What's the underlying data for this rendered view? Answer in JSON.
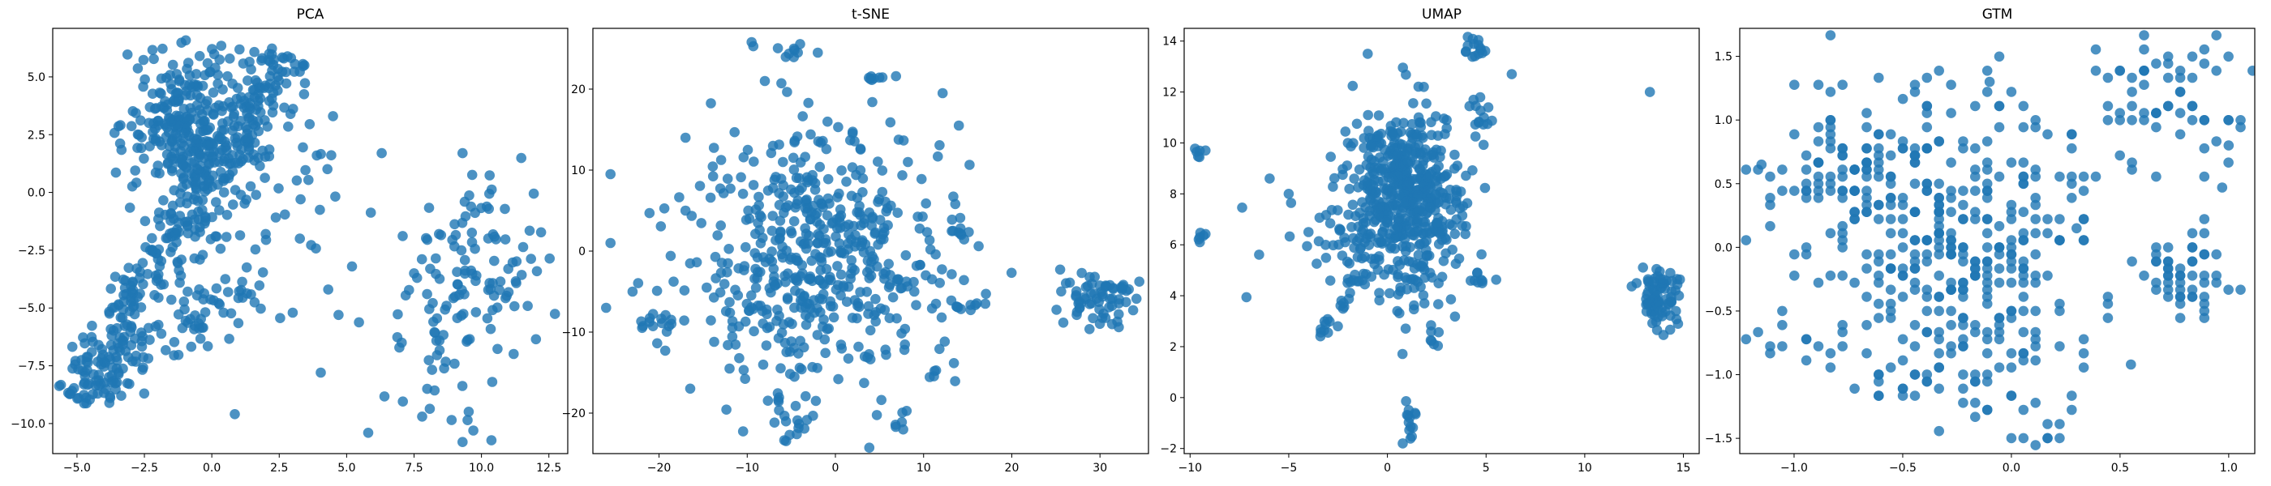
{
  "figure": {
    "marker_color": "#1f77b4",
    "marker_alpha": 0.8
  },
  "chart_data": [
    {
      "type": "scatter",
      "title": "PCA",
      "xlabel": "",
      "ylabel": "",
      "xlim": [
        -5.9,
        13.2
      ],
      "ylim": [
        -11.3,
        7.1
      ],
      "xticks": [
        -5.0,
        -2.5,
        0.0,
        2.5,
        5.0,
        7.5,
        10.0,
        12.5
      ],
      "yticks": [
        -10.0,
        -7.5,
        -5.0,
        -2.5,
        0.0,
        2.5,
        5.0
      ],
      "grid": false,
      "clusters": [
        {
          "shape": "line",
          "from": [
            -5.0,
            -9.0
          ],
          "to": [
            2.8,
            6.0
          ],
          "width": 1.2,
          "count": 360
        },
        {
          "shape": "line",
          "from": [
            -4.0,
            -8.5
          ],
          "to": [
            1.0,
            -4.0
          ],
          "width": 1.0,
          "count": 60
        },
        {
          "shape": "blob",
          "center": [
            -1.0,
            3.0
          ],
          "spread": [
            1.1,
            1.6
          ],
          "count": 260
        },
        {
          "shape": "blob",
          "center": [
            0.8,
            -3.0
          ],
          "spread": [
            1.8,
            2.2
          ],
          "count": 50
        },
        {
          "shape": "blob",
          "center": [
            2.5,
            1.0
          ],
          "spread": [
            1.2,
            1.6
          ],
          "count": 25
        },
        {
          "shape": "blob",
          "center": [
            10.0,
            -3.0
          ],
          "spread": [
            1.4,
            2.3
          ],
          "count": 110
        },
        {
          "shape": "blob",
          "center": [
            8.5,
            -7.0
          ],
          "spread": [
            1.4,
            1.8
          ],
          "count": 25
        }
      ],
      "points": [
        [
          6.3,
          1.7
        ],
        [
          9.3,
          1.7
        ],
        [
          3.0,
          -5.2
        ],
        [
          4.7,
          -5.3
        ],
        [
          5.8,
          -10.4
        ],
        [
          7.8,
          -9.7
        ],
        [
          9.3,
          -10.8
        ],
        [
          9.7,
          -10.3
        ],
        [
          2.0,
          -1.8
        ],
        [
          5.2,
          -3.2
        ],
        [
          7.5,
          -3.5
        ],
        [
          10.4,
          -8.2
        ]
      ]
    },
    {
      "type": "scatter",
      "title": "t-SNE",
      "xlabel": "",
      "ylabel": "",
      "xlim": [
        -27.5,
        35.5
      ],
      "ylim": [
        -25.0,
        27.5
      ],
      "xticks": [
        -20,
        -10,
        0,
        10,
        20,
        30
      ],
      "yticks": [
        -20,
        -10,
        0,
        10,
        20
      ],
      "grid": false,
      "clusters": [
        {
          "shape": "blob",
          "center": [
            -2.0,
            0.0
          ],
          "spread": [
            7.0,
            8.0
          ],
          "count": 520
        },
        {
          "shape": "blob",
          "center": [
            30.0,
            -6.0
          ],
          "spread": [
            2.2,
            1.8
          ],
          "count": 70
        },
        {
          "shape": "blob",
          "center": [
            -20.0,
            -9.0
          ],
          "spread": [
            1.6,
            1.2
          ],
          "count": 15
        },
        {
          "shape": "blob",
          "center": [
            -5.0,
            -21.0
          ],
          "spread": [
            1.5,
            1.8
          ],
          "count": 20
        },
        {
          "shape": "blob",
          "center": [
            7.0,
            -21.5
          ],
          "spread": [
            0.8,
            0.8
          ],
          "count": 6
        },
        {
          "shape": "blob",
          "center": [
            13.0,
            -14.0
          ],
          "spread": [
            1.0,
            1.0
          ],
          "count": 6
        },
        {
          "shape": "blob",
          "center": [
            14.5,
            -6.5
          ],
          "spread": [
            1.5,
            0.5
          ],
          "count": 10
        },
        {
          "shape": "blob",
          "center": [
            14.0,
            2.0
          ],
          "spread": [
            0.7,
            1.0
          ],
          "count": 8
        },
        {
          "shape": "blob",
          "center": [
            4.5,
            21.5
          ],
          "spread": [
            1.3,
            0.6
          ],
          "count": 8
        },
        {
          "shape": "blob",
          "center": [
            -4.5,
            25.0
          ],
          "spread": [
            0.6,
            0.5
          ],
          "count": 8
        }
      ],
      "points": [
        [
          -25.5,
          9.5
        ],
        [
          -25.5,
          1.0
        ],
        [
          -26.0,
          -7.0
        ],
        [
          -9.5,
          25.8
        ],
        [
          -2.0,
          24.5
        ],
        [
          -17.0,
          14.0
        ],
        [
          14.0,
          15.5
        ],
        [
          -8.0,
          21.0
        ],
        [
          -17.0,
          5.0
        ],
        [
          17.0,
          -6.5
        ],
        [
          -23.0,
          -5.0
        ],
        [
          -12.0,
          -14.5
        ]
      ]
    },
    {
      "type": "scatter",
      "title": "UMAP",
      "xlabel": "",
      "ylabel": "",
      "xlim": [
        -10.3,
        15.8
      ],
      "ylim": [
        -2.2,
        14.5
      ],
      "xticks": [
        -10,
        -5,
        0,
        5,
        10,
        15
      ],
      "yticks": [
        -2,
        0,
        2,
        4,
        6,
        8,
        10,
        12,
        14
      ],
      "grid": false,
      "clusters": [
        {
          "shape": "blob",
          "center": [
            1.0,
            8.2
          ],
          "spread": [
            1.4,
            1.5
          ],
          "count": 430
        },
        {
          "shape": "blob",
          "center": [
            -1.5,
            6.5
          ],
          "spread": [
            2.0,
            1.2
          ],
          "count": 80
        },
        {
          "shape": "blob",
          "center": [
            1.5,
            5.0
          ],
          "spread": [
            1.3,
            1.0
          ],
          "count": 60
        },
        {
          "shape": "line",
          "from": [
            -3.5,
            2.4
          ],
          "to": [
            -1.0,
            5.0
          ],
          "width": 0.3,
          "count": 25
        },
        {
          "shape": "blob",
          "center": [
            13.8,
            4.0
          ],
          "spread": [
            0.5,
            0.6
          ],
          "count": 80
        },
        {
          "shape": "blob",
          "center": [
            4.5,
            13.6
          ],
          "spread": [
            0.3,
            0.25
          ],
          "count": 15
        },
        {
          "shape": "blob",
          "center": [
            4.8,
            11.0
          ],
          "spread": [
            0.3,
            0.6
          ],
          "count": 14
        },
        {
          "shape": "blob",
          "center": [
            1.2,
            -1.0
          ],
          "spread": [
            0.2,
            0.45
          ],
          "count": 14
        },
        {
          "shape": "blob",
          "center": [
            -9.5,
            9.7
          ],
          "spread": [
            0.15,
            0.15
          ],
          "count": 6
        },
        {
          "shape": "blob",
          "center": [
            -9.5,
            6.2
          ],
          "spread": [
            0.12,
            0.12
          ],
          "count": 6
        },
        {
          "shape": "blob",
          "center": [
            4.6,
            4.6
          ],
          "spread": [
            0.3,
            0.15
          ],
          "count": 8
        },
        {
          "shape": "blob",
          "center": [
            2.3,
            2.3
          ],
          "spread": [
            0.15,
            0.3
          ],
          "count": 7
        }
      ],
      "points": [
        [
          -1.0,
          13.5
        ],
        [
          6.3,
          12.7
        ],
        [
          13.3,
          12.0
        ],
        [
          3.0,
          10.9
        ],
        [
          -5.0,
          8.0
        ],
        [
          -2.0,
          10.0
        ],
        [
          3.5,
          7.0
        ],
        [
          -4.0,
          6.5
        ],
        [
          0.5,
          3.4
        ]
      ]
    },
    {
      "type": "scatter",
      "title": "GTM",
      "xlabel": "",
      "ylabel": "",
      "xlim": [
        -1.25,
        1.12
      ],
      "ylim": [
        -1.62,
        1.72
      ],
      "xticks": [
        -1.0,
        -0.5,
        0.0,
        0.5,
        1.0
      ],
      "yticks": [
        -1.5,
        -1.0,
        -0.5,
        0.0,
        0.5,
        1.0,
        1.5
      ],
      "grid": false,
      "grid_spacing": 0.0555,
      "clusters": [
        {
          "shape": "blob",
          "center": [
            -0.3,
            0.3
          ],
          "spread": [
            0.35,
            0.55
          ],
          "count": 280
        },
        {
          "shape": "blob",
          "center": [
            0.7,
            1.2
          ],
          "spread": [
            0.2,
            0.25
          ],
          "count": 60
        },
        {
          "shape": "blob",
          "center": [
            0.8,
            -0.2
          ],
          "spread": [
            0.1,
            0.15
          ],
          "count": 50
        },
        {
          "shape": "blob",
          "center": [
            -0.25,
            -0.6
          ],
          "spread": [
            0.3,
            0.4
          ],
          "count": 120
        },
        {
          "shape": "blob",
          "center": [
            -0.8,
            0.6
          ],
          "spread": [
            0.2,
            0.25
          ],
          "count": 45
        },
        {
          "shape": "blob",
          "center": [
            -1.05,
            -0.8
          ],
          "spread": [
            0.1,
            0.12
          ],
          "count": 12
        },
        {
          "shape": "blob",
          "center": [
            0.1,
            -1.3
          ],
          "spread": [
            0.15,
            0.15
          ],
          "count": 12
        }
      ],
      "points": [
        [
          1.0,
          0.8
        ],
        [
          0.97,
          0.47
        ],
        [
          0.55,
          -0.92
        ],
        [
          -1.15,
          0.65
        ],
        [
          -0.1,
          1.3
        ],
        [
          0.3,
          0.15
        ]
      ]
    }
  ]
}
